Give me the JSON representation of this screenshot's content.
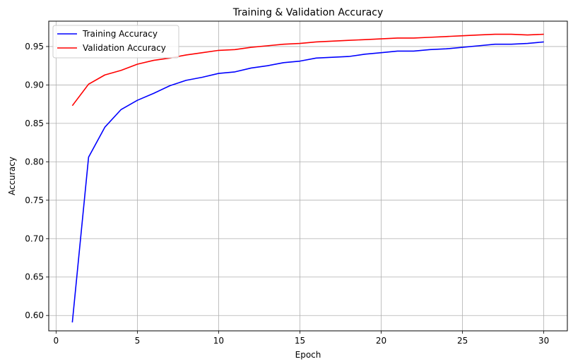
{
  "chart_data": {
    "type": "line",
    "title": "Training & Validation Accuracy",
    "xlabel": "Epoch",
    "ylabel": "Accuracy",
    "xlim": [
      -0.45,
      31.45
    ],
    "ylim": [
      0.58,
      0.983
    ],
    "x_ticks": [
      0,
      5,
      10,
      15,
      20,
      25,
      30
    ],
    "y_ticks": [
      0.6,
      0.65,
      0.7,
      0.75,
      0.8,
      0.85,
      0.9,
      0.95
    ],
    "grid": true,
    "legend_position": "top-left",
    "x": [
      1,
      2,
      3,
      4,
      5,
      6,
      7,
      8,
      9,
      10,
      11,
      12,
      13,
      14,
      15,
      16,
      17,
      18,
      19,
      20,
      21,
      22,
      23,
      24,
      25,
      26,
      27,
      28,
      29,
      30
    ],
    "series": [
      {
        "name": "Training Accuracy",
        "color": "#0000ff",
        "values": [
          0.591,
          0.806,
          0.845,
          0.868,
          0.88,
          0.889,
          0.899,
          0.906,
          0.91,
          0.915,
          0.917,
          0.922,
          0.925,
          0.929,
          0.931,
          0.935,
          0.936,
          0.937,
          0.94,
          0.942,
          0.944,
          0.944,
          0.946,
          0.947,
          0.949,
          0.951,
          0.953,
          0.953,
          0.954,
          0.956
        ]
      },
      {
        "name": "Validation Accuracy",
        "color": "#ff0000",
        "values": [
          0.873,
          0.901,
          0.913,
          0.919,
          0.927,
          0.932,
          0.935,
          0.939,
          0.942,
          0.945,
          0.946,
          0.949,
          0.951,
          0.953,
          0.954,
          0.956,
          0.957,
          0.958,
          0.959,
          0.96,
          0.961,
          0.961,
          0.962,
          0.963,
          0.964,
          0.965,
          0.966,
          0.966,
          0.965,
          0.966
        ]
      }
    ]
  }
}
